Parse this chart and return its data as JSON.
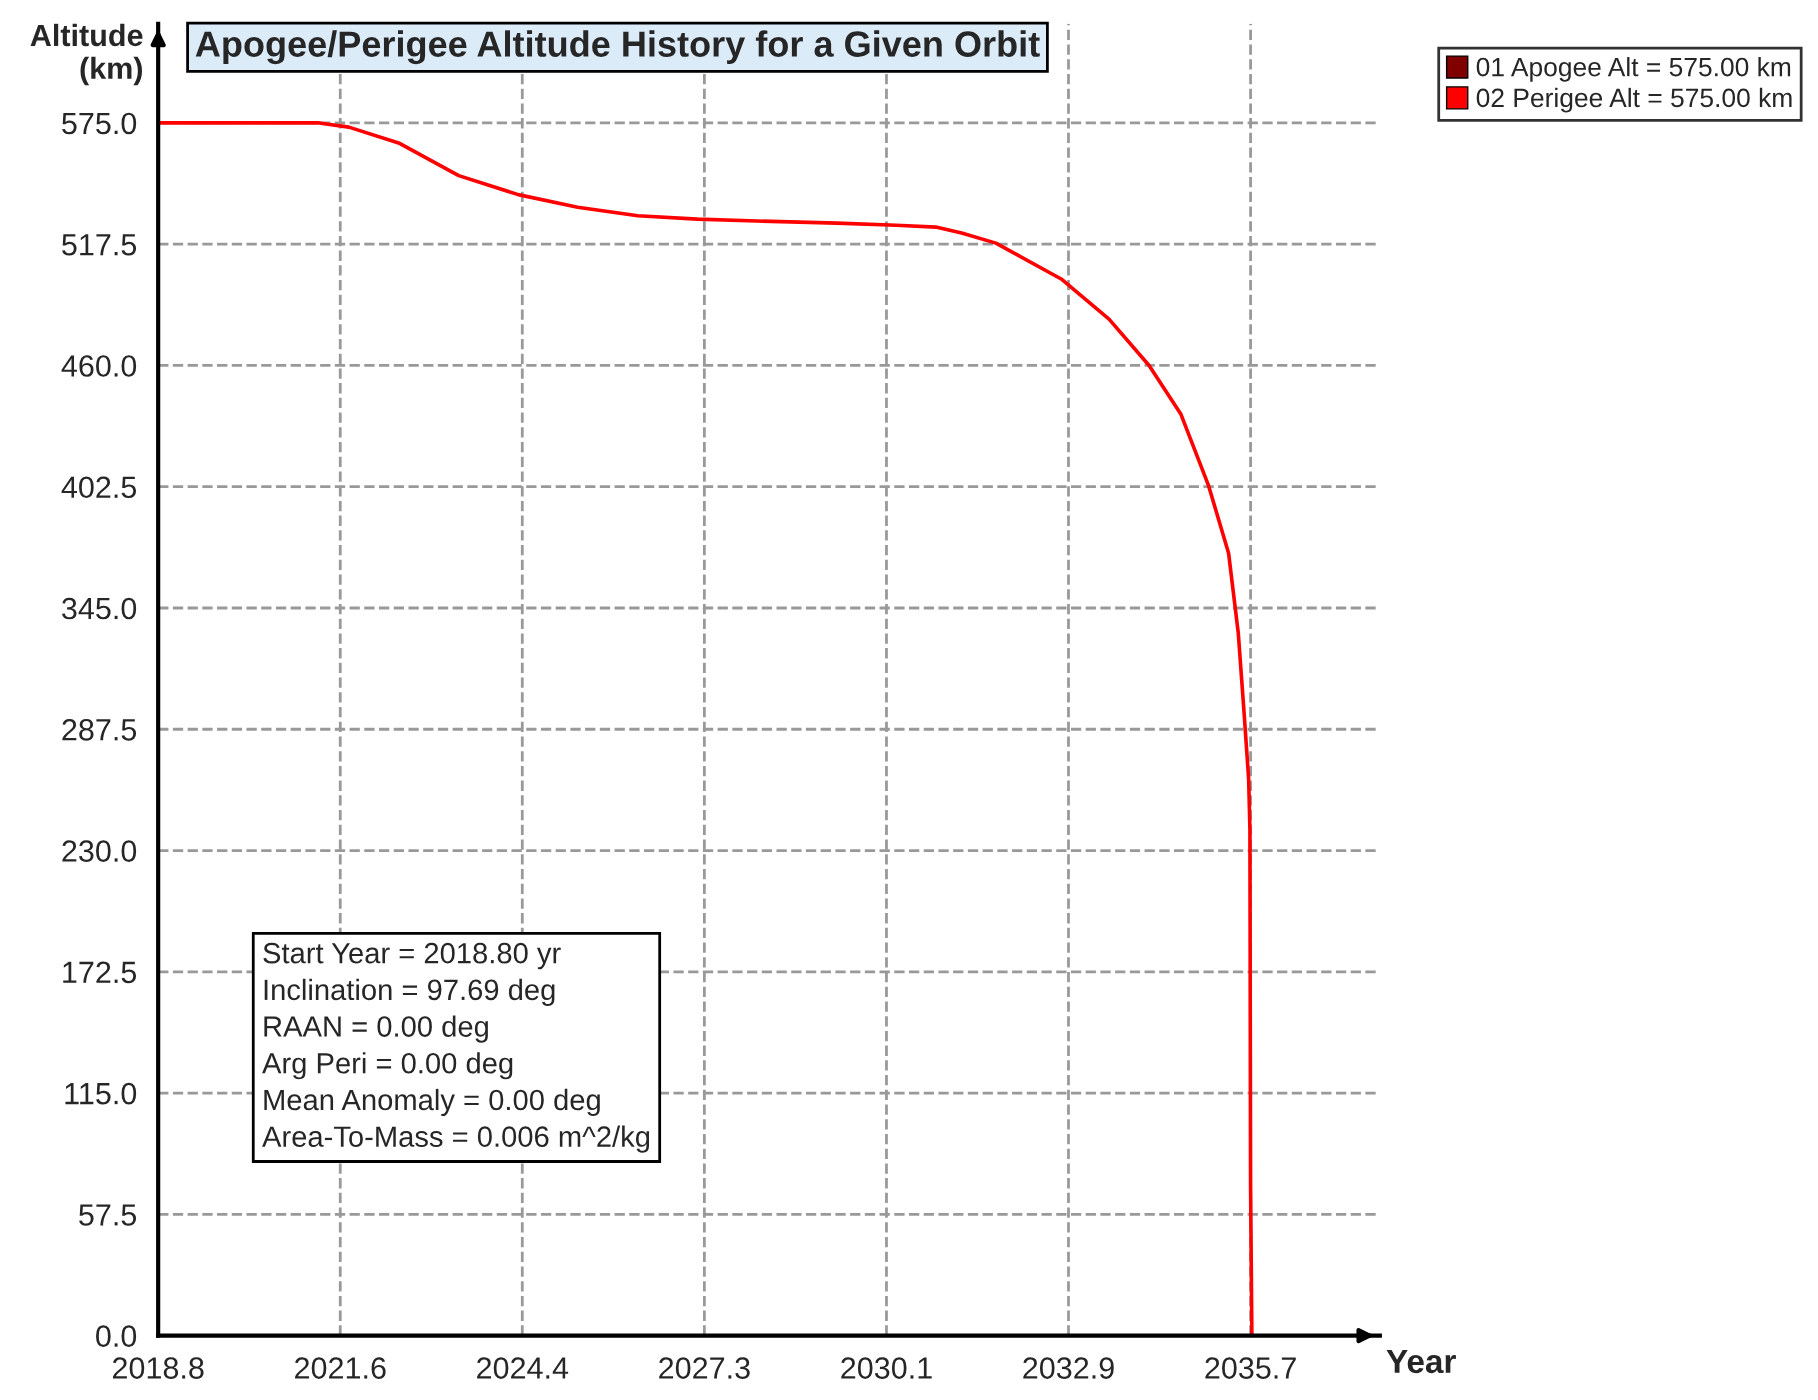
{
  "chart_data": {
    "type": "line",
    "title": "Apogee/Perigee Altitude History for a Given Orbit",
    "xlabel": "Year",
    "ylabel": "Altitude\n(km)",
    "xlim": [
      2018.8,
      2037.7
    ],
    "ylim": [
      0,
      622
    ],
    "xticks": [
      {
        "value": 2018.8,
        "label": "2018.8"
      },
      {
        "value": 2021.617,
        "label": "2021.6"
      },
      {
        "value": 2024.433,
        "label": "2024.4"
      },
      {
        "value": 2027.25,
        "label": "2027.3"
      },
      {
        "value": 2030.067,
        "label": "2030.1"
      },
      {
        "value": 2032.883,
        "label": "2032.9"
      },
      {
        "value": 2035.7,
        "label": "2035.7"
      }
    ],
    "yticks": [
      {
        "value": 0,
        "label": "0.0"
      },
      {
        "value": 57.5,
        "label": "57.5"
      },
      {
        "value": 115,
        "label": "115.0"
      },
      {
        "value": 172.5,
        "label": "172.5"
      },
      {
        "value": 230,
        "label": "230.0"
      },
      {
        "value": 287.5,
        "label": "287.5"
      },
      {
        "value": 345,
        "label": "345.0"
      },
      {
        "value": 402.5,
        "label": "402.5"
      },
      {
        "value": 460,
        "label": "460.0"
      },
      {
        "value": 517.5,
        "label": "517.5"
      },
      {
        "value": 575,
        "label": "575.0"
      }
    ],
    "x": [
      2018.8,
      2021.29,
      2021.75,
      2022.52,
      2023.45,
      2024.37,
      2025.29,
      2026.22,
      2027.14,
      2028.06,
      2029.3,
      2030.22,
      2030.83,
      2031.23,
      2031.76,
      2032.77,
      2033.51,
      2034.13,
      2034.62,
      2035.05,
      2035.36,
      2035.51,
      2035.6,
      2035.67,
      2035.69,
      2035.7,
      2035.72
    ],
    "series": [
      {
        "name": "01 Apogee Alt = 575.00 km",
        "color": "#800000",
        "values": [
          null,
          null,
          null,
          null,
          null,
          null,
          null,
          null,
          null,
          null,
          null,
          null,
          null,
          null,
          null,
          null,
          null,
          null,
          null,
          null,
          null,
          null,
          null,
          null,
          null,
          null,
          null
        ]
      },
      {
        "name": "02 Perigee Alt = 575.00 km",
        "color": "#ff0000",
        "values": [
          575,
          575,
          573,
          565.5,
          550,
          541,
          535,
          531,
          529.4,
          528.5,
          527.5,
          526.5,
          525.6,
          522.8,
          518,
          501,
          482,
          460,
          437,
          403,
          371,
          333,
          295,
          264,
          240,
          71,
          0
        ]
      }
    ],
    "annotations": [
      "Start Year = 2018.80 yr\nInclination = 97.69 deg\nRAAN = 0.00 deg\nArg Peri = 0.00 deg\nMean Anomaly = 0.00 deg\nArea-To-Mass = 0.006 m^2/kg"
    ],
    "grid": true,
    "legend": "top right",
    "marker": "none",
    "line_style": "solid"
  }
}
